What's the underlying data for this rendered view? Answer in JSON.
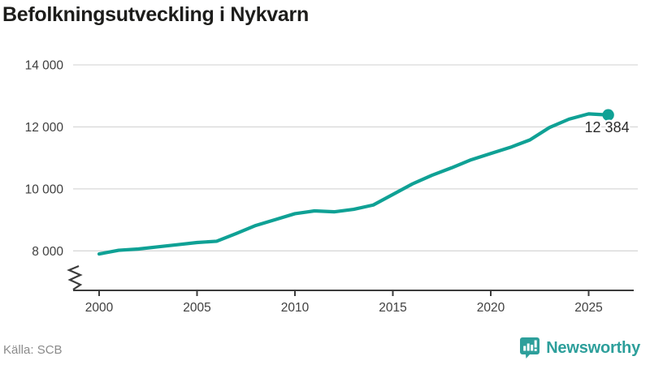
{
  "header": {
    "title": "Befolkningsutveckling i Nykvarn"
  },
  "footer": {
    "source": "Källa: SCB",
    "brand": "Newsworthy"
  },
  "colors": {
    "line": "#0fa195",
    "marker": "#0fa195",
    "logo": "#2d9f9b",
    "title_text": "#1d1d1b",
    "axis": "#3c3c3c",
    "tick_label": "#404040",
    "grid": "#d9d9d9",
    "source_text": "#8b8b8b",
    "end_label_text": "#2b2b2b",
    "background": "#ffffff"
  },
  "chart_data": {
    "type": "line",
    "title": "Befolkningsutveckling i Nykvarn",
    "xlabel": "",
    "ylabel": "",
    "grid": "horizontal",
    "legend": "none",
    "axis_break_bottom_left": true,
    "x": [
      2000,
      2001,
      2002,
      2003,
      2004,
      2005,
      2006,
      2007,
      2008,
      2009,
      2010,
      2011,
      2012,
      2013,
      2014,
      2015,
      2016,
      2017,
      2018,
      2019,
      2020,
      2021,
      2022,
      2023,
      2024,
      2025,
      2026
    ],
    "values": [
      7900,
      8020,
      8060,
      8130,
      8200,
      8270,
      8310,
      8560,
      8820,
      9010,
      9200,
      9290,
      9260,
      9340,
      9480,
      9820,
      10160,
      10440,
      10680,
      10940,
      11140,
      11340,
      11580,
      11980,
      12250,
      12420,
      12384
    ],
    "series_name": "Befolkning",
    "latest_value": 12384,
    "end_label": "12 384",
    "x_tick_values": [
      2000,
      2005,
      2010,
      2015,
      2020,
      2025
    ],
    "x_tick_labels": [
      "2000",
      "2005",
      "2010",
      "2015",
      "2020",
      "2025"
    ],
    "y_tick_values": [
      8000,
      10000,
      12000,
      14000
    ],
    "y_tick_labels": [
      "8 000",
      "10 000",
      "12 000",
      "14 000"
    ],
    "ylim": [
      7750,
      14200
    ],
    "xlim": [
      2000,
      2027
    ]
  }
}
